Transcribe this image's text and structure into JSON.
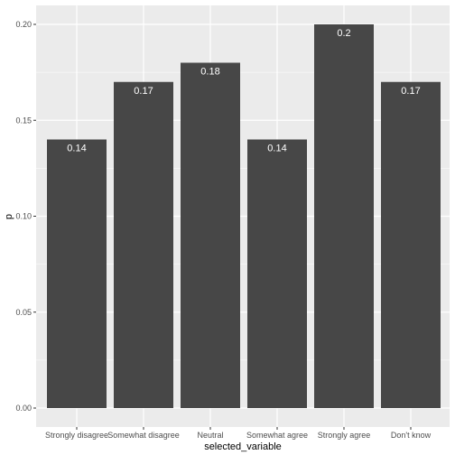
{
  "chart_data": {
    "type": "bar",
    "categories": [
      "Strongly disagree",
      "Somewhat disagree",
      "Neutral",
      "Somewhat agree",
      "Strongly agree",
      "Don't know"
    ],
    "values": [
      0.14,
      0.17,
      0.18,
      0.14,
      0.2,
      0.17
    ],
    "data_labels": [
      "0.14",
      "0.17",
      "0.18",
      "0.14",
      "0.2",
      "0.17"
    ],
    "xlabel": "selected_variable",
    "ylabel": "p",
    "ylim": [
      0,
      0.2
    ],
    "yticks": [
      0,
      0.05,
      0.1,
      0.15,
      0.2
    ],
    "ytick_labels": [
      "0.00",
      "0.05",
      "0.10",
      "0.15",
      "0.20"
    ],
    "grid": true,
    "colors": {
      "panel": "#ebebeb",
      "grid_major": "#ffffff",
      "bar": "#474747",
      "label": "#ffffff"
    }
  }
}
